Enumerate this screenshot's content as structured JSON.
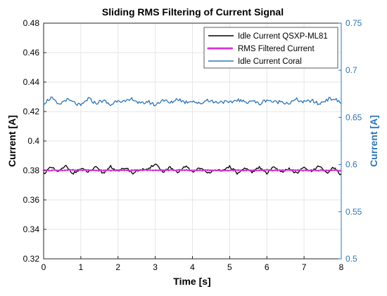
{
  "chart_data": {
    "type": "line",
    "title": "Sliding RMS Filtering of Current Signal",
    "xlabel": "Time [s]",
    "ylabel_left": "Current [A]",
    "ylabel_right": "Current [A]",
    "xlim": [
      0,
      8
    ],
    "ylim_left": [
      0.32,
      0.48
    ],
    "ylim_right": [
      0.5,
      0.75
    ],
    "x_ticks": [
      "0",
      "1",
      "2",
      "3",
      "4",
      "5",
      "6",
      "7",
      "8"
    ],
    "y_left_ticks": [
      "0.32",
      "0.34",
      "0.36",
      "0.38",
      "0.4",
      "0.42",
      "0.44",
      "0.46",
      "0.48"
    ],
    "y_right_ticks": [
      "0.5",
      "0.55",
      "0.6",
      "0.65",
      "0.7",
      "0.75"
    ],
    "grid": true,
    "legend_position": "top-right",
    "colors": {
      "left_axis": "#000000",
      "right_axis": "#2e75b6",
      "grid": "#e6e6e6"
    },
    "series": [
      {
        "name": "Idle Current QSXP-ML81",
        "axis": "left",
        "color": "#000000",
        "style": "solid",
        "mean": 0.38,
        "x": [
          0,
          0.2,
          0.4,
          0.6,
          0.8,
          1.0,
          1.2,
          1.4,
          1.6,
          1.8,
          2.0,
          2.2,
          2.4,
          2.6,
          2.8,
          3.0,
          3.2,
          3.4,
          3.6,
          3.8,
          4.0,
          4.2,
          4.4,
          4.6,
          4.8,
          5.0,
          5.2,
          5.4,
          5.6,
          5.8,
          6.0,
          6.2,
          6.4,
          6.6,
          6.8,
          7.0,
          7.2,
          7.4,
          7.6,
          7.8,
          8.0
        ],
        "values": [
          0.378,
          0.382,
          0.379,
          0.383,
          0.378,
          0.381,
          0.379,
          0.382,
          0.378,
          0.383,
          0.379,
          0.382,
          0.378,
          0.381,
          0.38,
          0.385,
          0.379,
          0.382,
          0.378,
          0.383,
          0.379,
          0.382,
          0.378,
          0.381,
          0.379,
          0.383,
          0.378,
          0.381,
          0.379,
          0.382,
          0.378,
          0.383,
          0.379,
          0.381,
          0.378,
          0.382,
          0.379,
          0.383,
          0.378,
          0.382,
          0.377
        ]
      },
      {
        "name": "RMS Filtered Current",
        "axis": "left",
        "color": "#d633d6",
        "style": "dotted",
        "mean": 0.38,
        "x": [
          0,
          1,
          2,
          3,
          4,
          5,
          6,
          7,
          8
        ],
        "values": [
          0.3801,
          0.3802,
          0.38,
          0.3803,
          0.3801,
          0.38,
          0.3802,
          0.3801,
          0.38
        ]
      },
      {
        "name": "Idle Current Coral",
        "axis": "right",
        "color": "#2e75b6",
        "style": "solid",
        "mean": 0.667,
        "x": [
          0,
          0.2,
          0.4,
          0.6,
          0.8,
          1.0,
          1.2,
          1.4,
          1.6,
          1.8,
          2.0,
          2.2,
          2.4,
          2.6,
          2.8,
          3.0,
          3.2,
          3.4,
          3.6,
          3.8,
          4.0,
          4.2,
          4.4,
          4.6,
          4.8,
          5.0,
          5.2,
          5.4,
          5.6,
          5.8,
          6.0,
          6.2,
          6.4,
          6.6,
          6.8,
          7.0,
          7.2,
          7.4,
          7.6,
          7.8,
          8.0
        ],
        "values": [
          0.665,
          0.671,
          0.663,
          0.669,
          0.666,
          0.662,
          0.67,
          0.665,
          0.668,
          0.663,
          0.669,
          0.666,
          0.67,
          0.664,
          0.667,
          0.663,
          0.669,
          0.665,
          0.67,
          0.666,
          0.668,
          0.664,
          0.669,
          0.666,
          0.667,
          0.665,
          0.669,
          0.666,
          0.668,
          0.664,
          0.669,
          0.666,
          0.667,
          0.665,
          0.669,
          0.666,
          0.668,
          0.664,
          0.669,
          0.67,
          0.665
        ]
      }
    ]
  }
}
